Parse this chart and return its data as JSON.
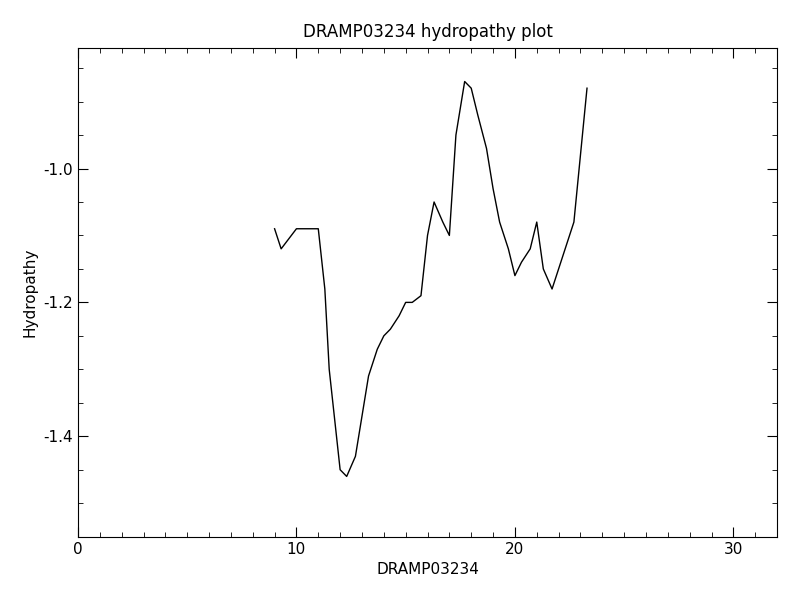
{
  "title": "DRAMP03234 hydropathy plot",
  "xlabel": "DRAMP03234",
  "ylabel": "Hydropathy",
  "xlim": [
    0,
    32
  ],
  "ylim": [
    -1.55,
    -0.82
  ],
  "xticks": [
    0,
    10,
    20,
    30
  ],
  "yticks": [
    -1.4,
    -1.2,
    -1.0
  ],
  "ytick_labels": [
    "-1.4",
    "-1.2",
    "-1.0"
  ],
  "line_color": "black",
  "line_width": 1.0,
  "background_color": "white",
  "x": [
    9.0,
    9.3,
    10.0,
    10.4,
    11.0,
    11.3,
    11.5,
    12.0,
    12.3,
    12.7,
    13.0,
    13.3,
    13.7,
    14.0,
    14.3,
    14.7,
    15.0,
    15.3,
    15.7,
    16.0,
    16.3,
    16.7,
    17.0,
    17.3,
    17.7,
    18.0,
    18.3,
    18.7,
    19.0,
    19.3,
    19.7,
    20.0,
    20.3,
    20.7,
    21.0,
    21.3,
    21.7,
    22.0,
    22.3,
    22.7,
    23.0,
    23.3
  ],
  "y": [
    -1.09,
    -1.12,
    -1.09,
    -1.09,
    -1.09,
    -1.18,
    -1.3,
    -1.45,
    -1.46,
    -1.43,
    -1.37,
    -1.31,
    -1.27,
    -1.25,
    -1.24,
    -1.22,
    -1.2,
    -1.2,
    -1.19,
    -1.1,
    -1.05,
    -1.08,
    -1.1,
    -0.95,
    -0.87,
    -0.88,
    -0.92,
    -0.97,
    -1.03,
    -1.08,
    -1.12,
    -1.16,
    -1.14,
    -1.12,
    -1.08,
    -1.15,
    -1.18,
    -1.15,
    -1.12,
    -1.08,
    -0.98,
    -0.88
  ]
}
